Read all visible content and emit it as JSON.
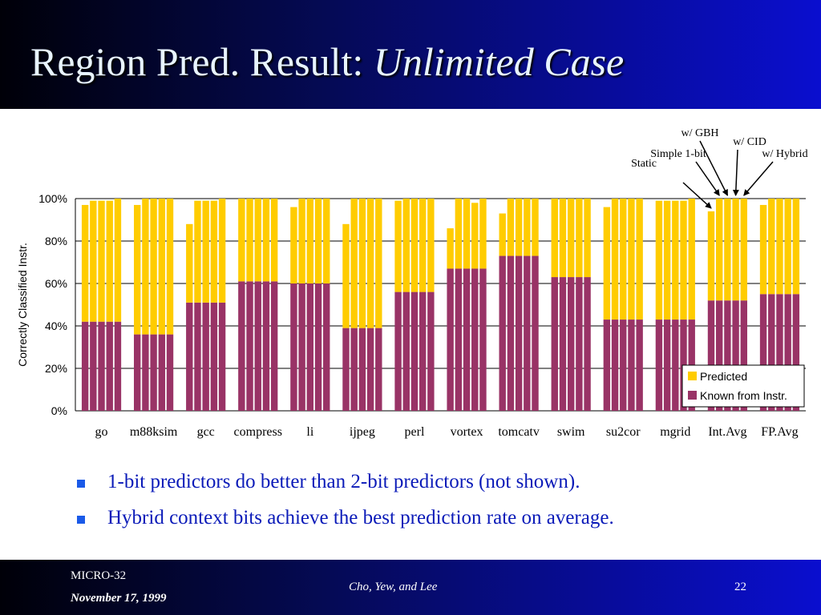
{
  "slide": {
    "title_main": "Region Pred. Result: ",
    "title_italic": "Unlimited Case",
    "bullets": [
      "1-bit predictors do better than 2-bit predictors (not shown).",
      "Hybrid context bits achieve the best prediction rate on average."
    ],
    "footer": {
      "venue": "MICRO-32",
      "date": "November 17, 1999",
      "authors": "Cho, Yew, and Lee",
      "page": "22"
    }
  },
  "colors": {
    "predicted": "#ffcc00",
    "known": "#993366",
    "title_text": "#e8f4ff",
    "bullet_text": "#0a1ab8",
    "bullet_marker": "#1a5ae8"
  },
  "chart_data": {
    "type": "bar",
    "stacked": true,
    "ylabel": "Correctly Classified Instr.",
    "xlabel": "",
    "ylim": [
      0,
      100
    ],
    "yticks": [
      "0%",
      "20%",
      "40%",
      "60%",
      "80%",
      "100%"
    ],
    "grid": true,
    "legend_position": "bottom-right",
    "categories": [
      "go",
      "m88ksim",
      "gcc",
      "compress",
      "li",
      "ijpeg",
      "perl",
      "vortex",
      "tomcatv",
      "swim",
      "su2cor",
      "mgrid",
      "Int.Avg",
      "FP.Avg"
    ],
    "bar_variants": [
      "Static",
      "Simple 1-bit",
      "w/ GBH",
      "w/ CID",
      "w/ Hybrid"
    ],
    "series": [
      {
        "name": "Known from Instr.",
        "values": [
          [
            42,
            42,
            42,
            42,
            42
          ],
          [
            36,
            36,
            36,
            36,
            36
          ],
          [
            51,
            51,
            51,
            51,
            51
          ],
          [
            61,
            61,
            61,
            61,
            61
          ],
          [
            60,
            60,
            60,
            60,
            60
          ],
          [
            39,
            39,
            39,
            39,
            39
          ],
          [
            56,
            56,
            56,
            56,
            56
          ],
          [
            67,
            67,
            67,
            67,
            67
          ],
          [
            73,
            73,
            73,
            73,
            73
          ],
          [
            63,
            63,
            63,
            63,
            63
          ],
          [
            43,
            43,
            43,
            43,
            43
          ],
          [
            43,
            43,
            43,
            43,
            43
          ],
          [
            52,
            52,
            52,
            52,
            52
          ],
          [
            55,
            55,
            55,
            55,
            55
          ]
        ]
      },
      {
        "name": "Predicted",
        "values": [
          [
            55,
            57,
            57,
            57,
            58
          ],
          [
            61,
            64,
            64,
            64,
            64
          ],
          [
            37,
            48,
            48,
            48,
            49
          ],
          [
            39,
            39,
            39,
            39,
            39
          ],
          [
            36,
            40,
            40,
            40,
            40
          ],
          [
            49,
            61,
            61,
            61,
            61
          ],
          [
            43,
            44,
            44,
            44,
            44
          ],
          [
            19,
            33,
            33,
            31,
            33
          ],
          [
            20,
            27,
            27,
            27,
            27
          ],
          [
            37,
            37,
            37,
            37,
            37
          ],
          [
            53,
            57,
            57,
            57,
            57
          ],
          [
            56,
            56,
            56,
            56,
            57
          ],
          [
            42,
            48,
            48,
            48,
            48
          ],
          [
            42,
            45,
            45,
            45,
            45
          ]
        ]
      }
    ]
  }
}
